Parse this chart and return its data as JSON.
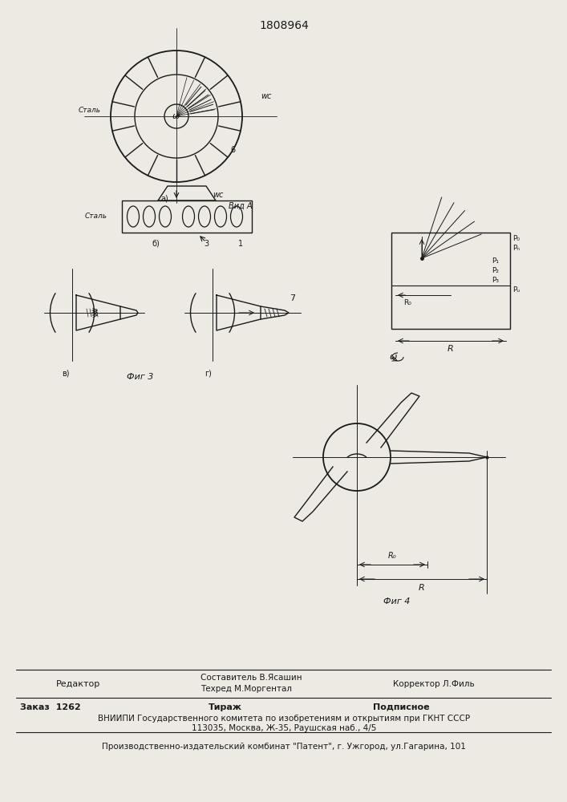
{
  "patent_number": "1808964",
  "background_color": "#ede9e3",
  "line_color": "#1a1a1a",
  "fig_width": 7.07,
  "fig_height": 10.0,
  "footer": {
    "editor_label": "Редактор",
    "composer_label": "Составитель В.Ясашин",
    "techred_label": "Техред М.Моргентал",
    "corrector_label": "Корректор Л.Филь",
    "order_label": "Заказ  1262",
    "tirazh_label": "Тираж",
    "podpisnoe_label": "Подписное",
    "vniiipi_line": "ВНИИПИ Государственного комитета по изобретениям и открытиям при ГКНТ СССР",
    "address_line": "113035, Москва, Ж-35, Раушская наб., 4/5",
    "kombinet_line": "Производственно-издательский комбинат \"Патент\", г. Ужгород, ул.Гагарина, 101"
  }
}
